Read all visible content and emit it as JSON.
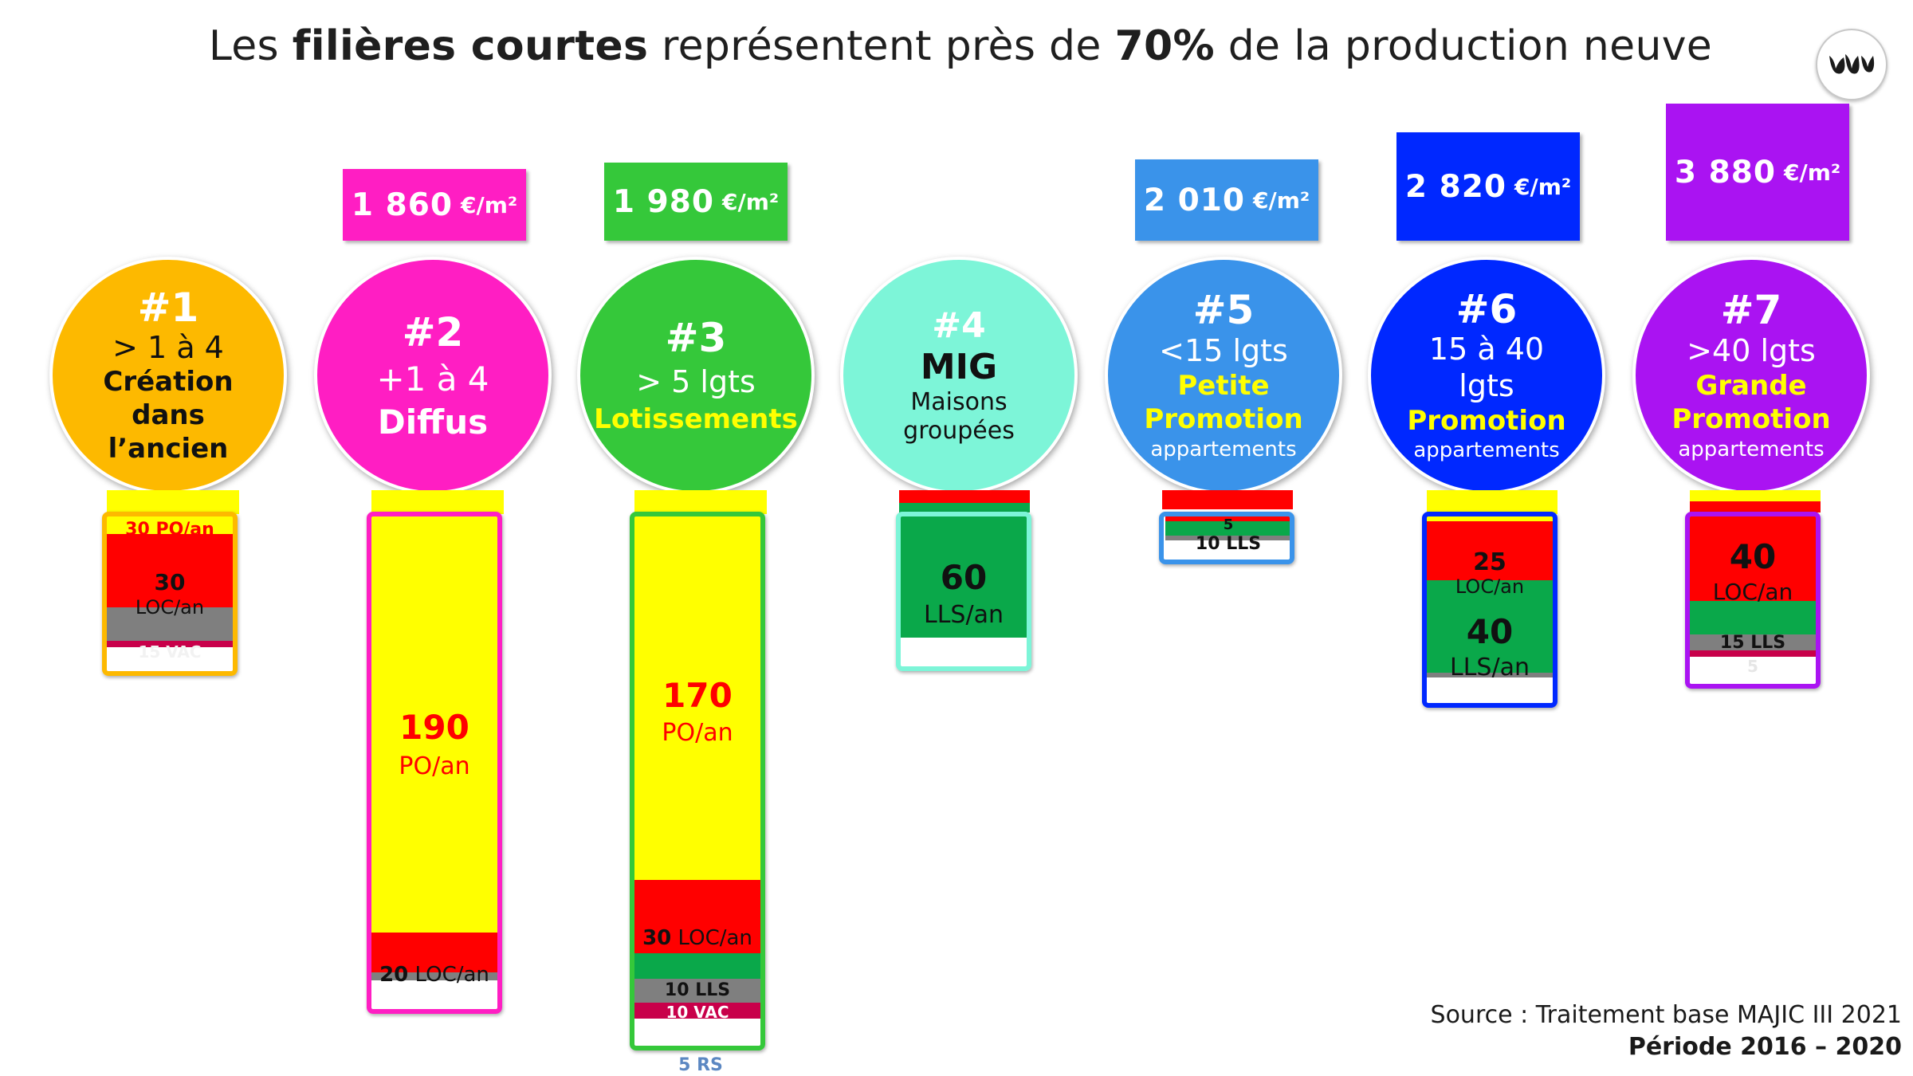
{
  "title": {
    "part1": "Les ",
    "bold1": "filières courtes",
    "part2": " représentent près de ",
    "bold2": "70%",
    "part3": " de la production neuve"
  },
  "prices": [
    {
      "value": "1 860",
      "unit": "€/m²",
      "color": "#ff1ec3"
    },
    {
      "value": "1 980",
      "unit": "€/m²",
      "color": "#35c83a"
    },
    {
      "value": "2 010",
      "unit": "€/m²",
      "color": "#3a93ea"
    },
    {
      "value": "2 820",
      "unit": "€/m²",
      "color": "#0028ff"
    },
    {
      "value": "3 880",
      "unit": "€/m²",
      "color": "#aa13f2"
    }
  ],
  "circles": [
    {
      "num": "#1",
      "l1": "> 1 à 4",
      "l2": "Création",
      "l3": "dans",
      "l4": "l’ancien",
      "color": "#fdb900"
    },
    {
      "num": "#2",
      "l1": "+1 à 4",
      "l2": "Diffus",
      "color": "#ff1ec3"
    },
    {
      "num": "#3",
      "l1": "> 5 lgts",
      "l2": "Lotissements",
      "color": "#35c83a"
    },
    {
      "num": "#4",
      "l1": "MIG",
      "l2": "Maisons",
      "l3": "groupées",
      "color": "#7df5d8"
    },
    {
      "num": "#5",
      "l1": "<15 lgts",
      "l2": "Petite",
      "l3": "Promotion",
      "l4": "appartements",
      "color": "#3a93ea"
    },
    {
      "num": "#6",
      "l1": "15 à 40",
      "l2": "lgts",
      "l3": "Promotion",
      "l4": "appartements",
      "color": "#0028ff"
    },
    {
      "num": "#7",
      "l1": ">40 lgts",
      "l2": "Grande",
      "l3": "Promotion",
      "l4": "appartements",
      "color": "#aa13f2"
    }
  ],
  "bars": [
    {
      "po": "",
      "loc": "30",
      "loc_unit": "LOC/an",
      "hidden_top": "30 PO/an",
      "vac": "15 VAC"
    },
    {
      "po": "190",
      "po_unit": "PO/an",
      "loc": "20",
      "loc_unit": "LOC/an"
    },
    {
      "po": "170",
      "po_unit": "PO/an",
      "loc": "30",
      "loc_unit": "LOC/an",
      "lls": "10 LLS",
      "vac": "10 VAC",
      "rs": "5 RS"
    },
    {
      "lls": "60",
      "lls_unit": "LLS/an"
    },
    {
      "loc": "5",
      "lls": "10 LLS"
    },
    {
      "loc": "25",
      "loc_unit": "LOC/an",
      "lls": "40",
      "lls_unit": "LLS/an"
    },
    {
      "loc": "40",
      "loc_unit": "LOC/an",
      "lls": "15 LLS",
      "vac": "5"
    }
  ],
  "source": {
    "line1": "Source : Traitement base MAJIC III 2021",
    "line2": "Période 2016 – 2020"
  },
  "colors": {
    "po": "#ffff00",
    "loc": "#ff0000",
    "lls": "#0aa84a",
    "vac": "#c8004a",
    "gray": "#7f7f7f",
    "rs": "#5b87c2"
  }
}
